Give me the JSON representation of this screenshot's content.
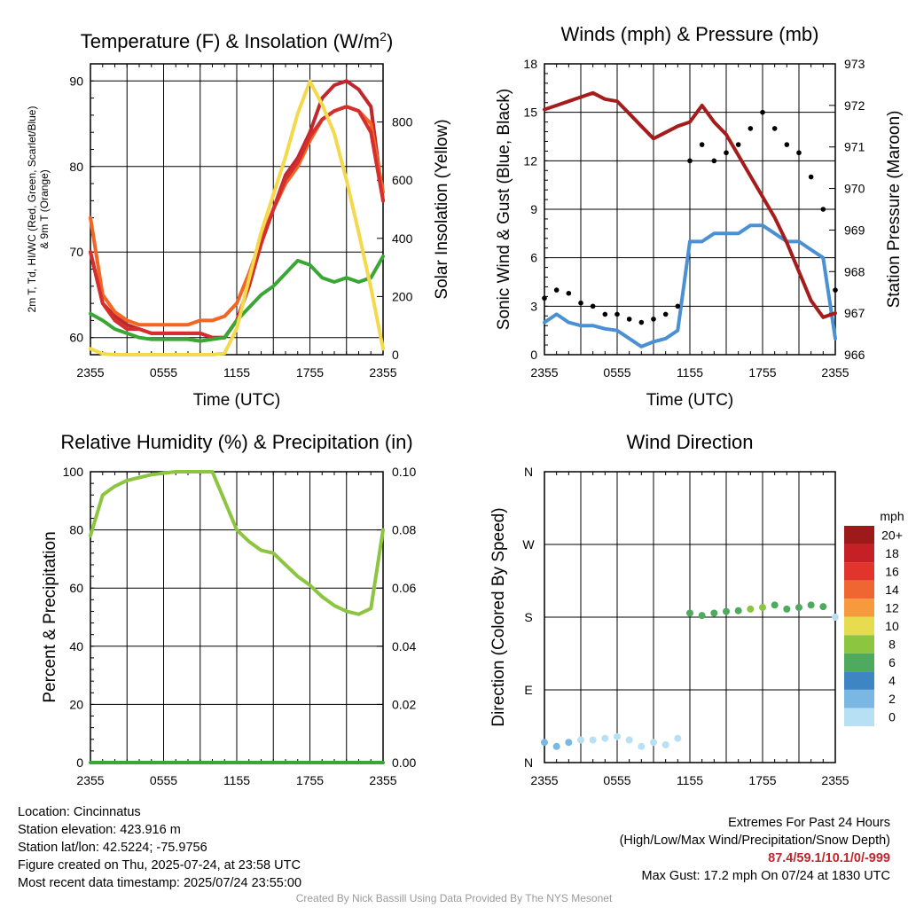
{
  "chart_data": [
    {
      "type": "line",
      "title": "Temperature (F) & Insolation (W/m²)",
      "xlabel": "Time (UTC)",
      "ylabel_left": "2m T, Td, HI/WC (Red, Green, Scarlet/Blue) & 9m T (Orange)",
      "ylabel_right": "Solar Insolation (Yellow)",
      "x_ticks": [
        "2355",
        "0555",
        "1155",
        "1755",
        "2355"
      ],
      "ylim_left": [
        58,
        92
      ],
      "yticks_left": [
        60,
        70,
        80,
        90
      ],
      "ylim_right": [
        0,
        1000
      ],
      "yticks_right": [
        0,
        200,
        400,
        600,
        800
      ],
      "x_hours": [
        0,
        1,
        2,
        3,
        4,
        5,
        6,
        7,
        8,
        9,
        10,
        11,
        12,
        13,
        14,
        15,
        16,
        17,
        18,
        19,
        20,
        21,
        22,
        23,
        24
      ],
      "series": [
        {
          "color": "#c0272d",
          "axis": "left",
          "values": [
            70,
            64,
            62.5,
            61.5,
            61,
            60.5,
            60.5,
            60.5,
            60.5,
            60.5,
            60,
            60,
            62,
            66,
            71,
            75,
            79,
            81,
            84,
            88,
            89.5,
            90,
            89,
            87,
            76
          ]
        },
        {
          "color": "#f26522",
          "axis": "left",
          "values": [
            74,
            65,
            63,
            62,
            61.5,
            61.5,
            61.5,
            61.5,
            61.5,
            62,
            62,
            62.5,
            64,
            67.5,
            71.5,
            75,
            78,
            80,
            83,
            85.5,
            86.5,
            87,
            86.5,
            85,
            77
          ]
        },
        {
          "color": "#d42e2e",
          "axis": "left",
          "values": [
            70,
            64,
            62,
            61,
            61,
            60.5,
            60.5,
            60.5,
            60.5,
            60.5,
            60,
            60,
            62,
            66,
            71,
            75,
            78.5,
            80.5,
            83.5,
            85.5,
            86.5,
            87,
            86.5,
            84,
            76
          ]
        },
        {
          "color": "#3aa635",
          "axis": "left",
          "values": [
            62.8,
            62,
            61,
            60.5,
            60,
            59.8,
            59.8,
            59.8,
            59.8,
            59.6,
            59.8,
            60,
            62,
            63.5,
            65,
            66,
            67.5,
            69,
            68.5,
            67,
            66.5,
            67,
            66.5,
            67,
            69.5
          ]
        },
        {
          "color": "#f5d94c",
          "axis": "right",
          "values": [
            20,
            3,
            0,
            0,
            0,
            0,
            0,
            0,
            0,
            0,
            0,
            5,
            90,
            260,
            420,
            550,
            680,
            830,
            940,
            860,
            760,
            600,
            420,
            230,
            20
          ]
        }
      ]
    },
    {
      "type": "line",
      "title": "Winds (mph) & Pressure (mb)",
      "xlabel": "Time (UTC)",
      "ylabel_left": "Sonic Wind & Gust (Blue, Black)",
      "ylabel_right": "Station Pressure (Maroon)",
      "x_ticks": [
        "2355",
        "0555",
        "1155",
        "1755",
        "2355"
      ],
      "ylim_left": [
        0,
        18
      ],
      "yticks_left": [
        0,
        3,
        6,
        9,
        12,
        15,
        18
      ],
      "ylim_right": [
        966,
        973
      ],
      "yticks_right": [
        966,
        967,
        968,
        969,
        970,
        971,
        972,
        973
      ],
      "x_hours": [
        0,
        1,
        2,
        3,
        4,
        5,
        6,
        7,
        8,
        9,
        10,
        11,
        12,
        13,
        14,
        15,
        16,
        17,
        18,
        19,
        20,
        21,
        22,
        23,
        24
      ],
      "series": [
        {
          "color": "#4a91d4",
          "axis": "left",
          "values": [
            2,
            2.5,
            2,
            1.8,
            1.8,
            1.6,
            1.5,
            1,
            0.5,
            0.8,
            1,
            1.5,
            7,
            7,
            7.5,
            7.5,
            7.5,
            8,
            8,
            7.5,
            7,
            7,
            6.5,
            6,
            1
          ]
        },
        {
          "color": "#000000",
          "axis": "left",
          "style": "points",
          "values": [
            3.5,
            4,
            3.8,
            3.2,
            3,
            2.5,
            2.5,
            2.2,
            2,
            2.2,
            2.5,
            3,
            12,
            13,
            12,
            12.5,
            13,
            14,
            15,
            14,
            13,
            12.5,
            11,
            9,
            4
          ]
        },
        {
          "color": "#a51c1c",
          "axis": "right",
          "values": [
            971.9,
            972.0,
            972.1,
            972.2,
            972.3,
            972.15,
            972.1,
            971.8,
            971.5,
            971.2,
            971.35,
            971.5,
            971.6,
            972.0,
            971.6,
            971.3,
            970.8,
            970.3,
            969.8,
            969.3,
            968.7,
            968.0,
            967.3,
            966.9,
            967.0
          ]
        }
      ]
    },
    {
      "type": "line",
      "title": "Relative Humidity (%) & Precipitation (in)",
      "xlabel": "",
      "ylabel_left": "Percent & Precipitation",
      "x_ticks": [
        "2355",
        "0555",
        "1155",
        "1755",
        "2355"
      ],
      "ylim_left": [
        0,
        100
      ],
      "yticks_left": [
        0,
        20,
        40,
        60,
        80,
        100
      ],
      "ylim_right": [
        0,
        0.1
      ],
      "yticks_right": [
        "0.00",
        "0.02",
        "0.04",
        "0.06",
        "0.08",
        "0.10"
      ],
      "x_hours": [
        0,
        1,
        2,
        3,
        4,
        5,
        6,
        7,
        8,
        9,
        10,
        11,
        12,
        13,
        14,
        15,
        16,
        17,
        18,
        19,
        20,
        21,
        22,
        23,
        24
      ],
      "series": [
        {
          "color": "#8cc540",
          "axis": "left",
          "values": [
            78,
            92,
            95,
            97,
            98,
            99,
            99.5,
            100,
            100,
            100,
            100,
            90,
            80,
            76,
            73,
            72,
            68,
            64,
            61,
            57,
            54,
            52,
            51,
            53,
            80
          ]
        },
        {
          "color": "#3aa635",
          "axis": "right",
          "values": [
            0,
            0,
            0,
            0,
            0,
            0,
            0,
            0,
            0,
            0,
            0,
            0,
            0,
            0,
            0,
            0,
            0,
            0,
            0,
            0,
            0,
            0,
            0,
            0,
            0
          ]
        }
      ]
    },
    {
      "type": "scatter",
      "title": "Wind Direction",
      "xlabel": "",
      "ylabel_left": "Direction (Colored By Speed)",
      "x_ticks": [
        "2355",
        "0555",
        "1155",
        "1755",
        "2355"
      ],
      "y_ticks": [
        "N",
        "E",
        "S",
        "W",
        "N"
      ],
      "ylim_deg": [
        0,
        360
      ],
      "colorbar": {
        "unit": "mph",
        "labels": [
          "20+",
          "18",
          "16",
          "14",
          "12",
          "10",
          "8",
          "6",
          "4",
          "2",
          "0"
        ],
        "colors": [
          "#9e1a1a",
          "#c52026",
          "#e0342d",
          "#ef6633",
          "#f79a3d",
          "#e7dc4f",
          "#8cc540",
          "#4daa5e",
          "#3e86c3",
          "#7ab8e3",
          "#b8e0f4"
        ]
      },
      "points_description": "Northerly light winds (10-35 deg) 2355-1155 UTC, shift to southerly (180-200 deg) from 1155 UTC with speeds 4-9 mph",
      "x_hours": [
        0,
        1,
        2,
        3,
        4,
        5,
        6,
        7,
        8,
        9,
        10,
        11,
        12,
        13,
        14,
        15,
        16,
        17,
        18,
        19,
        20,
        21,
        22,
        23,
        24
      ],
      "direction_deg": [
        25,
        20,
        25,
        28,
        28,
        30,
        32,
        28,
        20,
        25,
        22,
        30,
        185,
        182,
        185,
        187,
        188,
        190,
        192,
        195,
        190,
        192,
        195,
        193,
        180
      ],
      "speed_mph": [
        2,
        2.5,
        2,
        1.8,
        1.8,
        1.6,
        1.5,
        1,
        0.5,
        0.8,
        1,
        1.5,
        7,
        7,
        7.5,
        7.5,
        7.5,
        8,
        8,
        7.5,
        7,
        7,
        6.5,
        6,
        1
      ]
    }
  ],
  "info_left": {
    "location": "Location: Cincinnatus",
    "elevation": "Station elevation: 423.916 m",
    "latlon": "Station lat/lon: 42.5224; -75.9756",
    "created": "Figure created on Thu, 2025-07-24, at 23:58 UTC",
    "recent": "Most recent data timestamp: 2025/07/24 23:55:00"
  },
  "info_right": {
    "extremes_title": "Extremes For Past 24 Hours",
    "extremes_legend": "(High/Low/Max Wind/Precipitation/Snow Depth)",
    "extremes_values": "87.4/59.1/10.1/0/-999",
    "max_gust": "Max Gust: 17.2 mph On 07/24 at 1830 UTC"
  },
  "credit": "Created By Nick Bassill Using Data Provided By The NYS Mesonet"
}
